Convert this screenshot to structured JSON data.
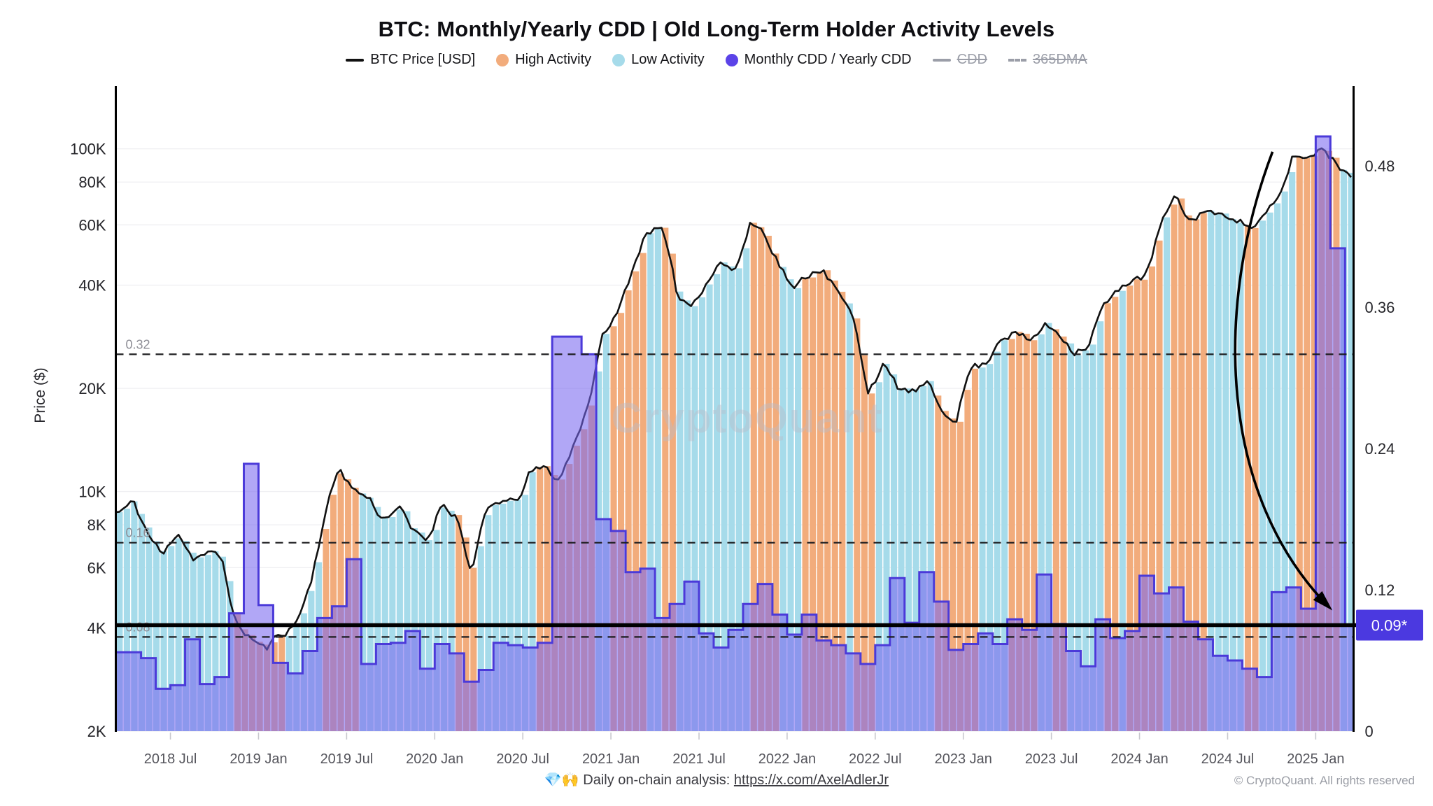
{
  "title": "BTC: Monthly/Yearly CDD | Old Long-Term Holder Activity Levels",
  "legend": [
    {
      "label": "BTC Price [USD]",
      "marker": "line",
      "color": "#111111",
      "enabled": true
    },
    {
      "label": "High Activity",
      "marker": "dot",
      "color": "#F2AC7C",
      "enabled": true
    },
    {
      "label": "Low Activity",
      "marker": "dot",
      "color": "#A6DBEA",
      "enabled": true
    },
    {
      "label": "Monthly CDD / Yearly CDD",
      "marker": "dot",
      "color": "#5B43E8",
      "enabled": true
    },
    {
      "label": "CDD",
      "marker": "line",
      "color": "#9b9ea8",
      "enabled": false
    },
    {
      "label": "365DMA",
      "marker": "dash",
      "color": "#9b9ea8",
      "enabled": false
    }
  ],
  "watermark": "CryptoQuant",
  "y_axis_left": {
    "title": "Price ($)",
    "scale": "log",
    "min": 2000,
    "max": 151000,
    "ticks": [
      {
        "label": "100K",
        "value": 100000
      },
      {
        "label": "80K",
        "value": 80000
      },
      {
        "label": "60K",
        "value": 60000
      },
      {
        "label": "40K",
        "value": 40000
      },
      {
        "label": "20K",
        "value": 20000
      },
      {
        "label": "10K",
        "value": 10000
      },
      {
        "label": "8K",
        "value": 8000
      },
      {
        "label": "6K",
        "value": 6000
      },
      {
        "label": "4K",
        "value": 4000
      },
      {
        "label": "2K",
        "value": 2000
      }
    ]
  },
  "y_axis_right": {
    "min": 0,
    "max": 0.5466,
    "ticks": [
      {
        "label": "0.48",
        "value": 0.48
      },
      {
        "label": "0.36",
        "value": 0.36
      },
      {
        "label": "0.24",
        "value": 0.24
      },
      {
        "label": "0.12",
        "value": 0.12
      },
      {
        "label": "0",
        "value": 0
      }
    ]
  },
  "x_axis": {
    "ticks": [
      {
        "label": "2018 Jul",
        "t": 2018.5
      },
      {
        "label": "2019 Jan",
        "t": 2019.0
      },
      {
        "label": "2019 Jul",
        "t": 2019.5
      },
      {
        "label": "2020 Jan",
        "t": 2020.0
      },
      {
        "label": "2020 Jul",
        "t": 2020.5
      },
      {
        "label": "2021 Jan",
        "t": 2021.0
      },
      {
        "label": "2021 Jul",
        "t": 2021.5
      },
      {
        "label": "2022 Jan",
        "t": 2022.0
      },
      {
        "label": "2022 Jul",
        "t": 2022.5
      },
      {
        "label": "2023 Jan",
        "t": 2023.0
      },
      {
        "label": "2023 Jul",
        "t": 2023.5
      },
      {
        "label": "2024 Jan",
        "t": 2024.0
      },
      {
        "label": "2024 Jul",
        "t": 2024.5
      },
      {
        "label": "2025 Jan",
        "t": 2025.0
      }
    ]
  },
  "reference_lines": [
    {
      "label": "0.32",
      "value": 0.32
    },
    {
      "label": "0.16",
      "value": 0.16
    },
    {
      "label": "0.08",
      "value": 0.08
    }
  ],
  "current_level": {
    "label": "0.09*",
    "value": 0.09,
    "badge_color": "#4B39E0",
    "text_color": "#ffffff"
  },
  "footer": {
    "note": "💎🙌 Daily on-chain analysis: ",
    "link": "https://x.com/AxelAdlerJr",
    "copyright": "© CryptoQuant. All rights reserved"
  },
  "chart_data": {
    "type": "composite",
    "description": "BTC price line (log scale, left axis) over activity bands; stepped bars = Monthly CDD / Yearly CDD (right axis)",
    "x_range": [
      2018.19,
      2025.215
    ],
    "months": [
      "2018-03",
      "2018-04",
      "2018-05",
      "2018-06",
      "2018-07",
      "2018-08",
      "2018-09",
      "2018-10",
      "2018-11",
      "2018-12",
      "2019-01",
      "2019-02",
      "2019-03",
      "2019-04",
      "2019-05",
      "2019-06",
      "2019-07",
      "2019-08",
      "2019-09",
      "2019-10",
      "2019-11",
      "2019-12",
      "2020-01",
      "2020-02",
      "2020-03",
      "2020-04",
      "2020-05",
      "2020-06",
      "2020-07",
      "2020-08",
      "2020-09",
      "2020-10",
      "2020-11",
      "2020-12",
      "2021-01",
      "2021-02",
      "2021-03",
      "2021-04",
      "2021-05",
      "2021-06",
      "2021-07",
      "2021-08",
      "2021-09",
      "2021-10",
      "2021-11",
      "2021-12",
      "2022-01",
      "2022-02",
      "2022-03",
      "2022-04",
      "2022-05",
      "2022-06",
      "2022-07",
      "2022-08",
      "2022-09",
      "2022-10",
      "2022-11",
      "2022-12",
      "2023-01",
      "2023-02",
      "2023-03",
      "2023-04",
      "2023-05",
      "2023-06",
      "2023-07",
      "2023-08",
      "2023-09",
      "2023-10",
      "2023-11",
      "2023-12",
      "2024-01",
      "2024-02",
      "2024-03",
      "2024-04",
      "2024-05",
      "2024-06",
      "2024-07",
      "2024-08",
      "2024-09",
      "2024-10",
      "2024-11",
      "2024-12",
      "2025-01",
      "2025-02",
      "2025-03"
    ],
    "btc_price_usd": [
      8700,
      9250,
      7500,
      6450,
      7750,
      6450,
      6600,
      6350,
      4050,
      3750,
      3450,
      3850,
      4100,
      5300,
      8550,
      11800,
      10100,
      9600,
      8300,
      9150,
      7550,
      7200,
      9350,
      8550,
      5800,
      8650,
      9450,
      9150,
      11350,
      11650,
      10800,
      13800,
      18500,
      28900,
      33100,
      45200,
      58900,
      57800,
      37300,
      35000,
      41600,
      47100,
      43800,
      61300,
      57000,
      46200,
      38500,
      43200,
      45500,
      37700,
      31800,
      19900,
      23300,
      20050,
      19400,
      20500,
      17150,
      16550,
      23100,
      23500,
      28500,
      29250,
      27200,
      30450,
      29250,
      26000,
      26950,
      34650,
      37700,
      42250,
      42550,
      61150,
      71300,
      60650,
      67500,
      62700,
      64600,
      58950,
      63300,
      70200,
      96450,
      93400,
      102400,
      90000,
      84000
    ],
    "monthly_yearly_cdd": [
      0.067,
      0.067,
      0.062,
      0.036,
      0.039,
      0.078,
      0.04,
      0.046,
      0.1,
      0.227,
      0.107,
      0.058,
      0.049,
      0.068,
      0.096,
      0.106,
      0.146,
      0.057,
      0.074,
      0.075,
      0.085,
      0.053,
      0.074,
      0.066,
      0.042,
      0.052,
      0.075,
      0.073,
      0.071,
      0.075,
      0.335,
      0.335,
      0.32,
      0.18,
      0.17,
      0.135,
      0.138,
      0.096,
      0.108,
      0.127,
      0.083,
      0.071,
      0.086,
      0.108,
      0.125,
      0.099,
      0.082,
      0.099,
      0.077,
      0.073,
      0.066,
      0.057,
      0.073,
      0.13,
      0.092,
      0.135,
      0.11,
      0.069,
      0.074,
      0.083,
      0.074,
      0.095,
      0.086,
      0.133,
      0.091,
      0.068,
      0.055,
      0.095,
      0.079,
      0.085,
      0.132,
      0.117,
      0.122,
      0.093,
      0.078,
      0.064,
      0.06,
      0.053,
      0.046,
      0.118,
      0.122,
      0.104,
      0.505,
      0.41,
      0.09
    ],
    "activity_bands": [
      {
        "from": 2018.19,
        "to": 2018.615,
        "activity": "low"
      },
      {
        "from": 2018.615,
        "to": 2018.645,
        "activity": "high"
      },
      {
        "from": 2018.645,
        "to": 2018.83,
        "activity": "low"
      },
      {
        "from": 2018.83,
        "to": 2019.12,
        "activity": "high"
      },
      {
        "from": 2019.12,
        "to": 2019.33,
        "activity": "low"
      },
      {
        "from": 2019.33,
        "to": 2019.54,
        "activity": "high"
      },
      {
        "from": 2019.54,
        "to": 2020.08,
        "activity": "low"
      },
      {
        "from": 2020.08,
        "to": 2020.21,
        "activity": "high"
      },
      {
        "from": 2020.21,
        "to": 2020.54,
        "activity": "low"
      },
      {
        "from": 2020.54,
        "to": 2020.87,
        "activity": "high"
      },
      {
        "from": 2020.87,
        "to": 2020.96,
        "activity": "low"
      },
      {
        "from": 2020.96,
        "to": 2021.17,
        "activity": "high"
      },
      {
        "from": 2021.17,
        "to": 2021.25,
        "activity": "low"
      },
      {
        "from": 2021.25,
        "to": 2021.33,
        "activity": "high"
      },
      {
        "from": 2021.33,
        "to": 2021.75,
        "activity": "low"
      },
      {
        "from": 2021.75,
        "to": 2021.92,
        "activity": "high"
      },
      {
        "from": 2021.92,
        "to": 2022.08,
        "activity": "low"
      },
      {
        "from": 2022.08,
        "to": 2022.31,
        "activity": "high"
      },
      {
        "from": 2022.31,
        "to": 2022.35,
        "activity": "low"
      },
      {
        "from": 2022.35,
        "to": 2022.5,
        "activity": "high"
      },
      {
        "from": 2022.5,
        "to": 2022.83,
        "activity": "low"
      },
      {
        "from": 2022.83,
        "to": 2023.06,
        "activity": "high"
      },
      {
        "from": 2023.06,
        "to": 2023.24,
        "activity": "low"
      },
      {
        "from": 2023.24,
        "to": 2023.42,
        "activity": "high"
      },
      {
        "from": 2023.42,
        "to": 2023.47,
        "activity": "low"
      },
      {
        "from": 2023.47,
        "to": 2023.58,
        "activity": "high"
      },
      {
        "from": 2023.58,
        "to": 2023.78,
        "activity": "low"
      },
      {
        "from": 2023.78,
        "to": 2023.87,
        "activity": "high"
      },
      {
        "from": 2023.87,
        "to": 2023.9,
        "activity": "low"
      },
      {
        "from": 2023.9,
        "to": 2024.12,
        "activity": "high"
      },
      {
        "from": 2024.12,
        "to": 2024.17,
        "activity": "low"
      },
      {
        "from": 2024.17,
        "to": 2024.38,
        "activity": "high"
      },
      {
        "from": 2024.38,
        "to": 2024.58,
        "activity": "low"
      },
      {
        "from": 2024.58,
        "to": 2024.65,
        "activity": "high"
      },
      {
        "from": 2024.65,
        "to": 2024.87,
        "activity": "low"
      },
      {
        "from": 2024.87,
        "to": 2025.12,
        "activity": "high"
      },
      {
        "from": 2025.12,
        "to": 2025.215,
        "activity": "low"
      }
    ],
    "colors": {
      "high": "#F2AC7C",
      "low": "#A6DBEA",
      "cdd_fill": "rgba(121,103,240,0.58)",
      "cdd_stroke": "#4B3AD9",
      "price_line": "#111111"
    },
    "annotation_arrow": {
      "from_t": 2024.755,
      "from_v": 0.492,
      "c1_t": 2024.42,
      "c1_v": 0.36,
      "c2_t": 2024.45,
      "c2_v": 0.2,
      "to_t": 2025.078,
      "to_v": 0.105
    }
  }
}
